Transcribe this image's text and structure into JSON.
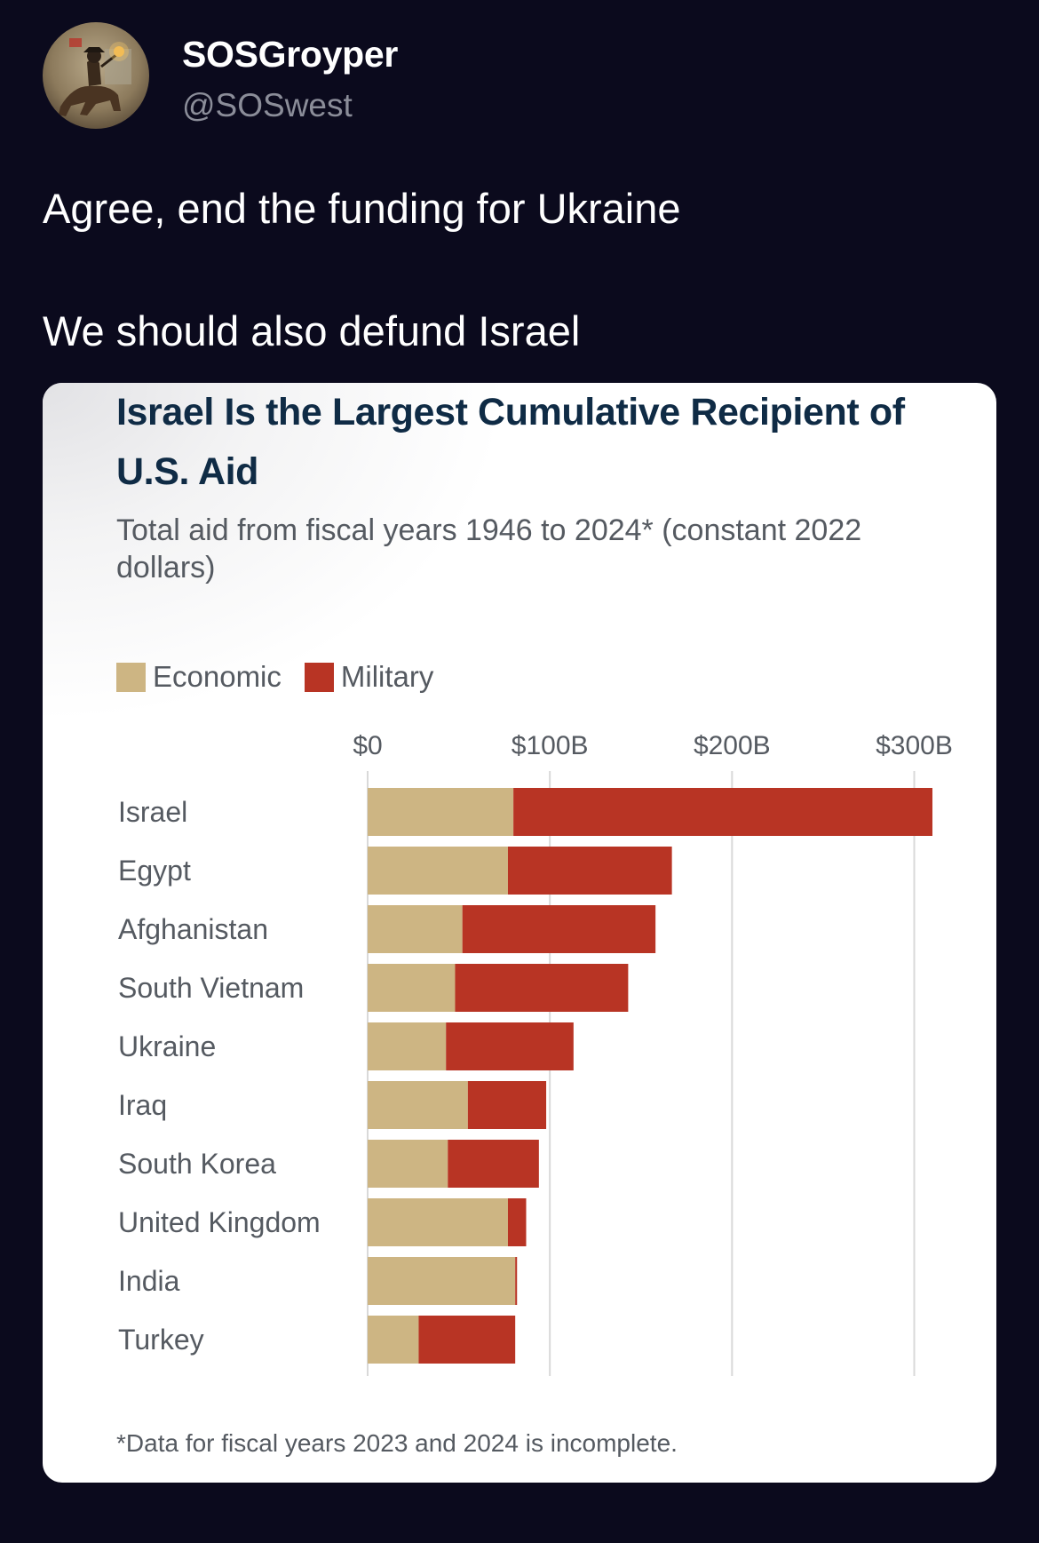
{
  "post": {
    "author_name": "SOSGroyper",
    "author_handle": "@SOSwest",
    "text_line_1": "Agree, end the funding for Ukraine",
    "text_line_2": "We should also defund Israel",
    "avatar_icon": "horseman-with-lantern-avatar"
  },
  "colors": {
    "background": "#0b0a1d",
    "economic": "#cdb583",
    "military": "#b83424",
    "title": "#0f2b45",
    "text_muted": "#555a61",
    "gridline": "#d9d9d9"
  },
  "chart_data": {
    "type": "bar",
    "orientation": "horizontal",
    "stacked": true,
    "title": "Israel Is the Largest Cumulative Recipient of U.S. Aid",
    "subtitle": "Total aid from fiscal years 1946 to 2024* (constant 2022 dollars)",
    "legend_position": "top-left",
    "grid": true,
    "xlim": [
      0,
      310
    ],
    "x_ticks": [
      0,
      100,
      200,
      300
    ],
    "x_tick_labels": [
      "$0",
      "$100B",
      "$200B",
      "$300B"
    ],
    "categories": [
      "Israel",
      "Egypt",
      "Afghanistan",
      "South Vietnam",
      "Ukraine",
      "Iraq",
      "South Korea",
      "United Kingdom",
      "India",
      "Turkey"
    ],
    "series": [
      {
        "name": "Economic",
        "values": [
          80,
          77,
          52,
          48,
          43,
          55,
          44,
          77,
          81,
          28
        ]
      },
      {
        "name": "Military",
        "values": [
          230,
          90,
          106,
          95,
          70,
          43,
          50,
          10,
          1,
          53
        ]
      }
    ],
    "footnote": "*Data for fiscal years 2023 and 2024 is incomplete."
  }
}
